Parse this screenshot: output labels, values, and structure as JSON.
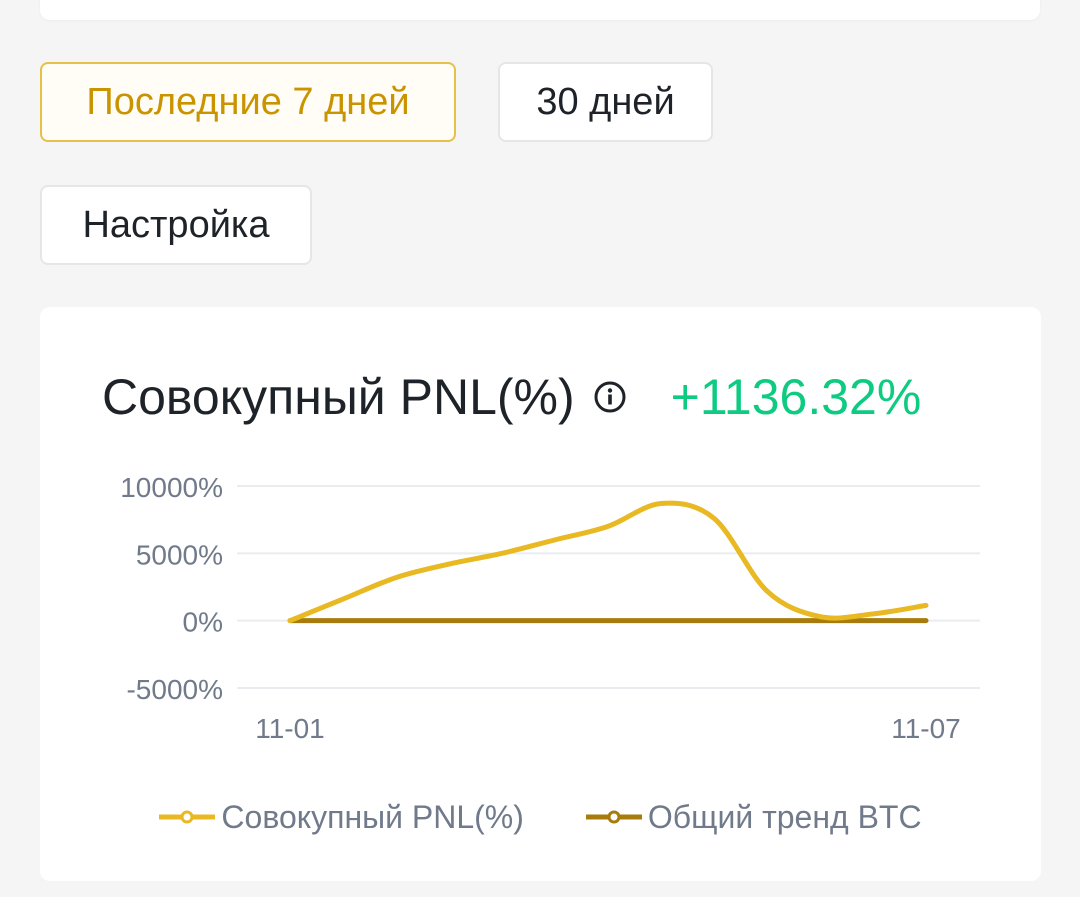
{
  "filters": {
    "last7": "Последние 7 дней",
    "last30": "30 дней",
    "custom": "Настройка"
  },
  "card": {
    "title": "Совокупный PNL(%)",
    "value": "+1136.32%",
    "info_icon": "info-icon"
  },
  "colors": {
    "accent": "#c99400",
    "positive": "#0ecb81",
    "pnl_line": "#e8b923",
    "btc_line": "#a77c0c"
  },
  "chart_data": {
    "type": "line",
    "y_ticks": [
      "10000%",
      "5000%",
      "0%",
      "-5000%"
    ],
    "y_tick_values": [
      10000,
      5000,
      0,
      -5000
    ],
    "x_tick_labels": [
      "11-01",
      "11-07"
    ],
    "ylim": [
      -5000,
      10000
    ],
    "series": [
      {
        "name": "Совокупный PNL(%)",
        "color": "#e8b923",
        "points": [
          [
            0,
            0
          ],
          [
            0.5,
            1600
          ],
          [
            1.0,
            3200
          ],
          [
            1.5,
            4200
          ],
          [
            2.0,
            5000
          ],
          [
            2.5,
            6000
          ],
          [
            3.0,
            7000
          ],
          [
            3.5,
            8700
          ],
          [
            4.0,
            7600
          ],
          [
            4.5,
            2200
          ],
          [
            5.0,
            300
          ],
          [
            5.5,
            500
          ],
          [
            6.0,
            1136
          ]
        ]
      },
      {
        "name": "Общий тренд BTC",
        "color": "#a77c0c",
        "points": [
          [
            0,
            0
          ],
          [
            6,
            0
          ]
        ]
      }
    ],
    "grid": true,
    "legend": "bottom"
  }
}
